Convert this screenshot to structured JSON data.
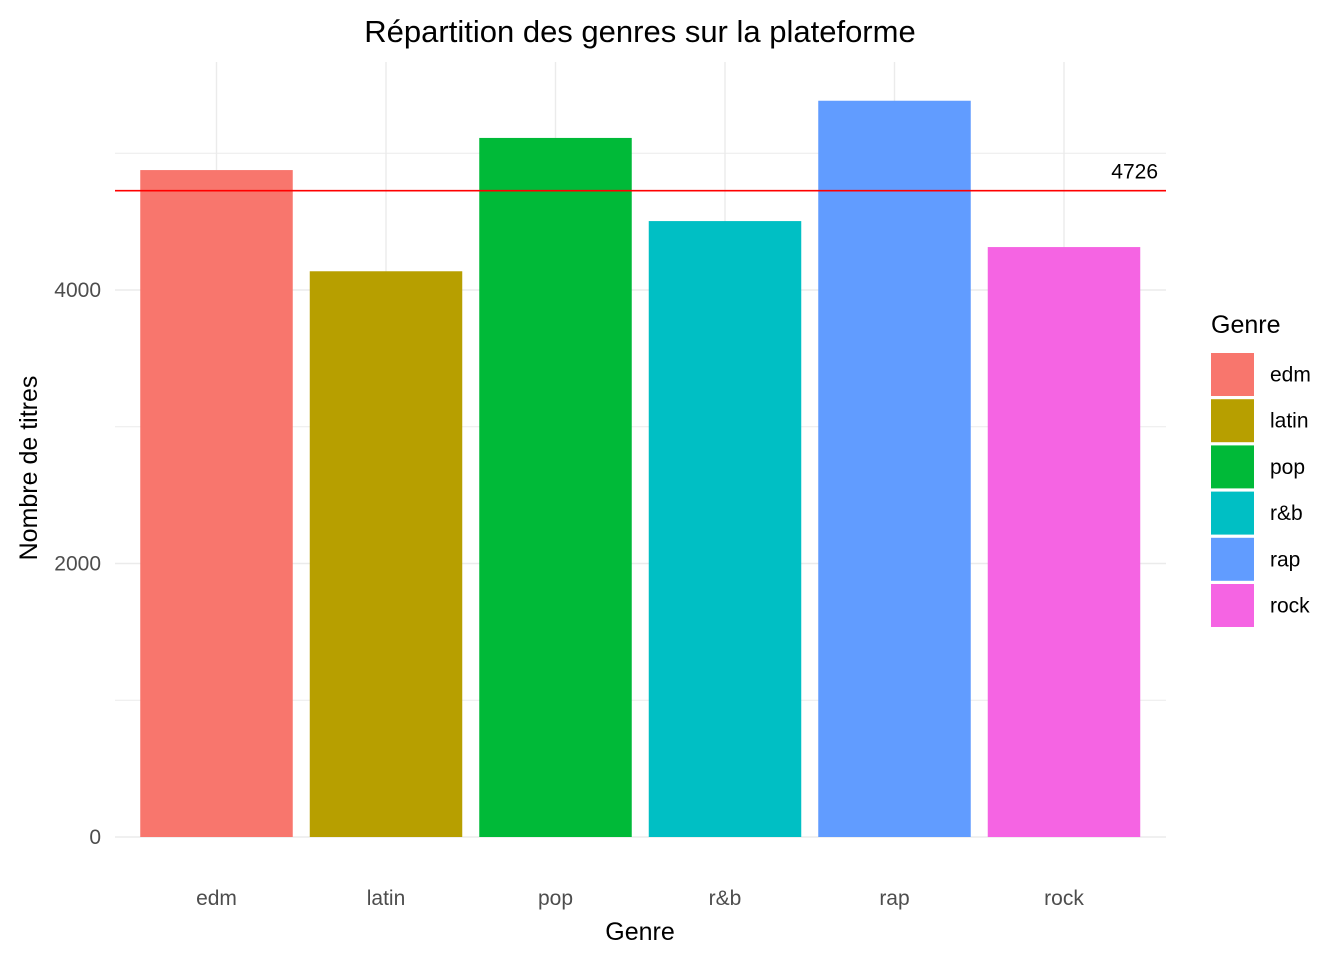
{
  "chart_data": {
    "type": "bar",
    "title": "Répartition des genres sur la plateforme",
    "xlabel": "Genre",
    "ylabel": "Nombre de titres",
    "categories": [
      "edm",
      "latin",
      "pop",
      "r&b",
      "rap",
      "rock"
    ],
    "values": [
      4877,
      4137,
      5112,
      4504,
      5384,
      4314
    ],
    "colors": [
      "#F8766D",
      "#B79F00",
      "#00BA38",
      "#00BFC4",
      "#619CFF",
      "#F564E3"
    ],
    "ylim": [
      0,
      5700
    ],
    "yticks": [
      0,
      2000,
      4000
    ],
    "yticks_labels": [
      "0",
      "2000",
      "4000"
    ],
    "grid": true,
    "legend": {
      "title": "Genre",
      "position": "right",
      "items": [
        "edm",
        "latin",
        "pop",
        "r&b",
        "rap",
        "rock"
      ]
    },
    "reference_line": {
      "value": 4726,
      "label": "4726",
      "color": "#FF0000"
    }
  }
}
